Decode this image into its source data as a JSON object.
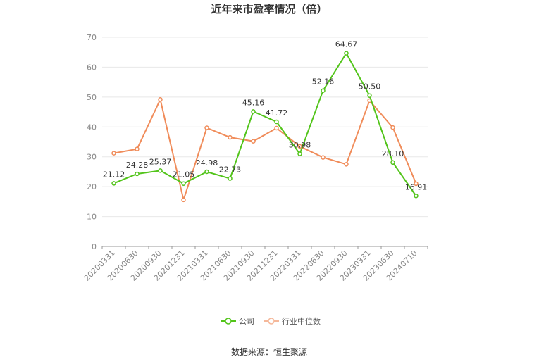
{
  "chart_data": {
    "type": "line",
    "title": "近年来市盈率情况（倍）",
    "categories": [
      "20200331",
      "20200630",
      "20200930",
      "20201231",
      "20210331",
      "20210630",
      "20210930",
      "20211231",
      "20220331",
      "20220630",
      "20220930",
      "20230331",
      "20230630",
      "20240710"
    ],
    "series": [
      {
        "name": "公司",
        "color": "#52c41a",
        "values": [
          21.12,
          24.28,
          25.37,
          21.05,
          24.98,
          22.73,
          45.16,
          41.72,
          30.98,
          52.16,
          64.67,
          50.5,
          28.1,
          16.91
        ],
        "labels": [
          "21.12",
          "24.28",
          "25.37",
          "21.05",
          "24.98",
          "22.73",
          "45.16",
          "41.72",
          "30.98",
          "52.16",
          "64.67",
          "50.50",
          "28.10",
          "16.91"
        ]
      },
      {
        "name": "行业中位数",
        "color": "#f08c5a",
        "values": [
          31.2,
          32.6,
          49.2,
          15.6,
          39.7,
          36.5,
          35.2,
          39.6,
          33.5,
          29.8,
          27.5,
          48.8,
          39.8,
          21.0
        ]
      }
    ],
    "ylim": [
      0,
      70
    ],
    "yticks": [
      0,
      10,
      20,
      30,
      40,
      50,
      60,
      70
    ],
    "grid": true,
    "legend": "bottom-center",
    "source": "数据来源：恒生聚源"
  }
}
